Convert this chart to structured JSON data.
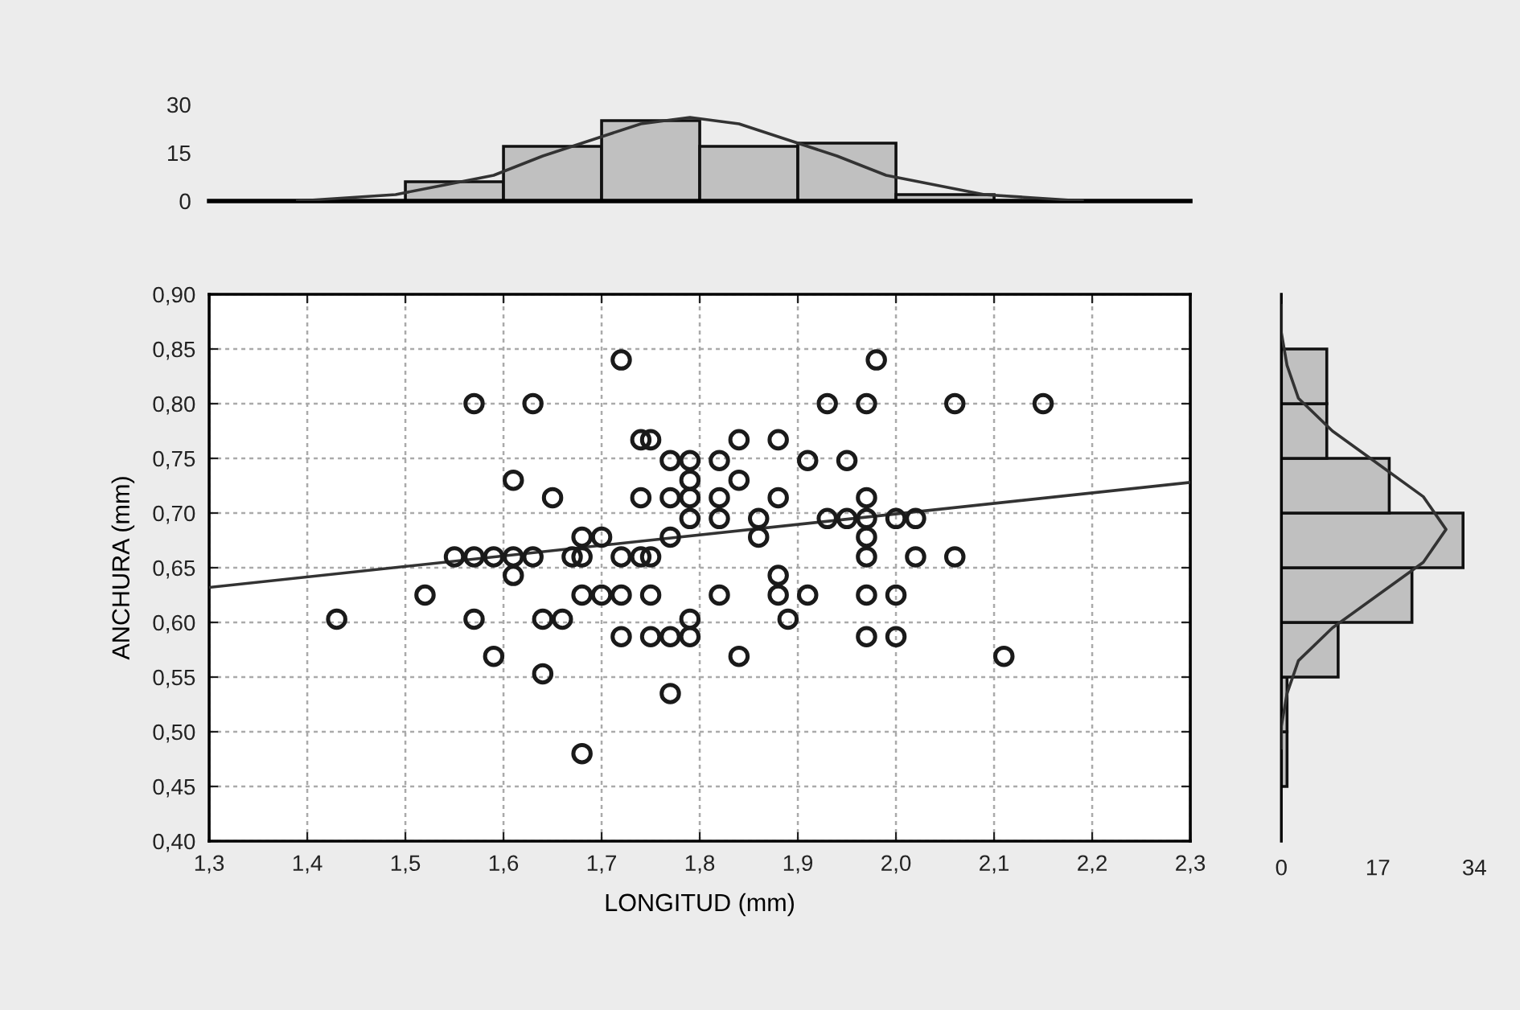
{
  "chart_data": [
    {
      "type": "histogram",
      "xlim": [
        1.3,
        2.3
      ],
      "ylim": [
        0,
        30
      ],
      "yticks": [
        0,
        15,
        30
      ],
      "tick_labels": "y",
      "series": [
        {
          "type": "histogram",
          "color": "#c0c0c0",
          "bins": [
            1.5,
            1.6,
            1.7,
            1.8,
            1.9,
            2.0,
            2.1
          ],
          "values": [
            6,
            17,
            25,
            17,
            18,
            2
          ]
        },
        {
          "type": "line",
          "color": "#333333",
          "x": [
            1.39,
            1.44,
            1.49,
            1.54,
            1.59,
            1.64,
            1.69,
            1.74,
            1.79,
            1.84,
            1.89,
            1.94,
            1.99,
            2.04,
            2.09,
            2.14,
            2.19
          ],
          "values": [
            0,
            1,
            2,
            5,
            8,
            14,
            19,
            24,
            26,
            24,
            19,
            14,
            8,
            5,
            2,
            1,
            0
          ]
        }
      ]
    },
    {
      "type": "scatter",
      "xlabel": "LONGITUD (mm)",
      "ylabel": "ANCHURA (mm)",
      "grid": true,
      "xlim": [
        1.3,
        2.3
      ],
      "ylim": [
        0.4,
        0.9
      ],
      "xticks": [
        {
          "value": 1.3,
          "label": "1,3"
        },
        {
          "value": 1.4,
          "label": "1,4"
        },
        {
          "value": 1.5,
          "label": "1,5"
        },
        {
          "value": 1.6,
          "label": "1,6"
        },
        {
          "value": 1.7,
          "label": "1,7"
        },
        {
          "value": 1.8,
          "label": "1,8"
        },
        {
          "value": 1.9,
          "label": "1,9"
        },
        {
          "value": 2.0,
          "label": "2,0"
        },
        {
          "value": 2.1,
          "label": "2,1"
        },
        {
          "value": 2.2,
          "label": "2,2"
        },
        {
          "value": 2.3,
          "label": "2,3"
        }
      ],
      "yticks": [
        {
          "value": 0.4,
          "label": "0,40"
        },
        {
          "value": 0.45,
          "label": "0,45"
        },
        {
          "value": 0.5,
          "label": "0,50"
        },
        {
          "value": 0.55,
          "label": "0,55"
        },
        {
          "value": 0.6,
          "label": "0,60"
        },
        {
          "value": 0.65,
          "label": "0,65"
        },
        {
          "value": 0.7,
          "label": "0,70"
        },
        {
          "value": 0.75,
          "label": "0,75"
        },
        {
          "value": 0.8,
          "label": "0,80"
        },
        {
          "value": 0.85,
          "label": "0,85"
        },
        {
          "value": 0.9,
          "label": "0,90"
        }
      ],
      "series": [
        {
          "type": "scatter",
          "color": "#1a1a1a",
          "marker": "circle",
          "x": [
            1.72,
            1.98,
            1.57,
            1.63,
            1.93,
            1.97,
            2.06,
            2.15,
            1.74,
            1.75,
            1.84,
            1.88,
            1.77,
            1.79,
            1.82,
            1.91,
            1.95,
            1.61,
            1.79,
            1.84,
            1.65,
            1.74,
            1.77,
            1.79,
            1.82,
            1.88,
            1.97,
            1.79,
            1.82,
            1.86,
            1.93,
            1.95,
            1.97,
            2.0,
            2.02,
            1.68,
            1.7,
            1.77,
            1.86,
            1.97,
            1.55,
            1.57,
            1.59,
            1.61,
            1.63,
            1.67,
            1.68,
            1.72,
            1.74,
            1.75,
            1.97,
            2.02,
            2.06,
            1.61,
            1.88,
            1.52,
            1.68,
            1.7,
            1.72,
            1.75,
            1.82,
            1.88,
            1.91,
            1.97,
            2.0,
            1.43,
            1.57,
            1.64,
            1.66,
            1.79,
            1.89,
            1.72,
            1.75,
            1.77,
            1.79,
            1.97,
            2.0,
            1.59,
            1.84,
            2.11,
            1.64,
            1.77,
            1.68
          ],
          "values": [
            0.84,
            0.84,
            0.8,
            0.8,
            0.8,
            0.8,
            0.8,
            0.8,
            0.767,
            0.767,
            0.767,
            0.767,
            0.748,
            0.748,
            0.748,
            0.748,
            0.748,
            0.73,
            0.73,
            0.73,
            0.714,
            0.714,
            0.714,
            0.714,
            0.714,
            0.714,
            0.714,
            0.695,
            0.695,
            0.695,
            0.695,
            0.695,
            0.695,
            0.695,
            0.695,
            0.678,
            0.678,
            0.678,
            0.678,
            0.678,
            0.66,
            0.66,
            0.66,
            0.66,
            0.66,
            0.66,
            0.66,
            0.66,
            0.66,
            0.66,
            0.66,
            0.66,
            0.66,
            0.643,
            0.643,
            0.625,
            0.625,
            0.625,
            0.625,
            0.625,
            0.625,
            0.625,
            0.625,
            0.625,
            0.625,
            0.603,
            0.603,
            0.603,
            0.603,
            0.603,
            0.603,
            0.587,
            0.587,
            0.587,
            0.587,
            0.587,
            0.587,
            0.569,
            0.569,
            0.569,
            0.553,
            0.535,
            0.48
          ]
        },
        {
          "type": "line",
          "color": "#333333",
          "x": [
            1.3,
            2.3
          ],
          "values": [
            0.632,
            0.728
          ]
        }
      ]
    },
    {
      "type": "histogram",
      "orientation": "horizontal",
      "xlim": [
        0,
        34
      ],
      "xticks": [
        0,
        17,
        34
      ],
      "ylim": [
        0.4,
        0.9
      ],
      "tick_labels": "x",
      "series": [
        {
          "type": "histogram",
          "color": "#c0c0c0",
          "bins": [
            0.45,
            0.5,
            0.55,
            0.6,
            0.65,
            0.7,
            0.75,
            0.8,
            0.85
          ],
          "values": [
            1,
            1,
            10,
            23,
            32,
            19,
            8,
            8
          ]
        },
        {
          "type": "line",
          "color": "#333333",
          "x": [
            0.485,
            0.505,
            0.535,
            0.565,
            0.595,
            0.625,
            0.655,
            0.685,
            0.715,
            0.745,
            0.775,
            0.805,
            0.835,
            0.865,
            0.89
          ],
          "values": [
            0,
            0,
            1,
            3,
            9,
            17,
            25,
            29,
            25,
            17,
            9,
            3,
            1,
            0,
            0
          ]
        }
      ]
    }
  ]
}
